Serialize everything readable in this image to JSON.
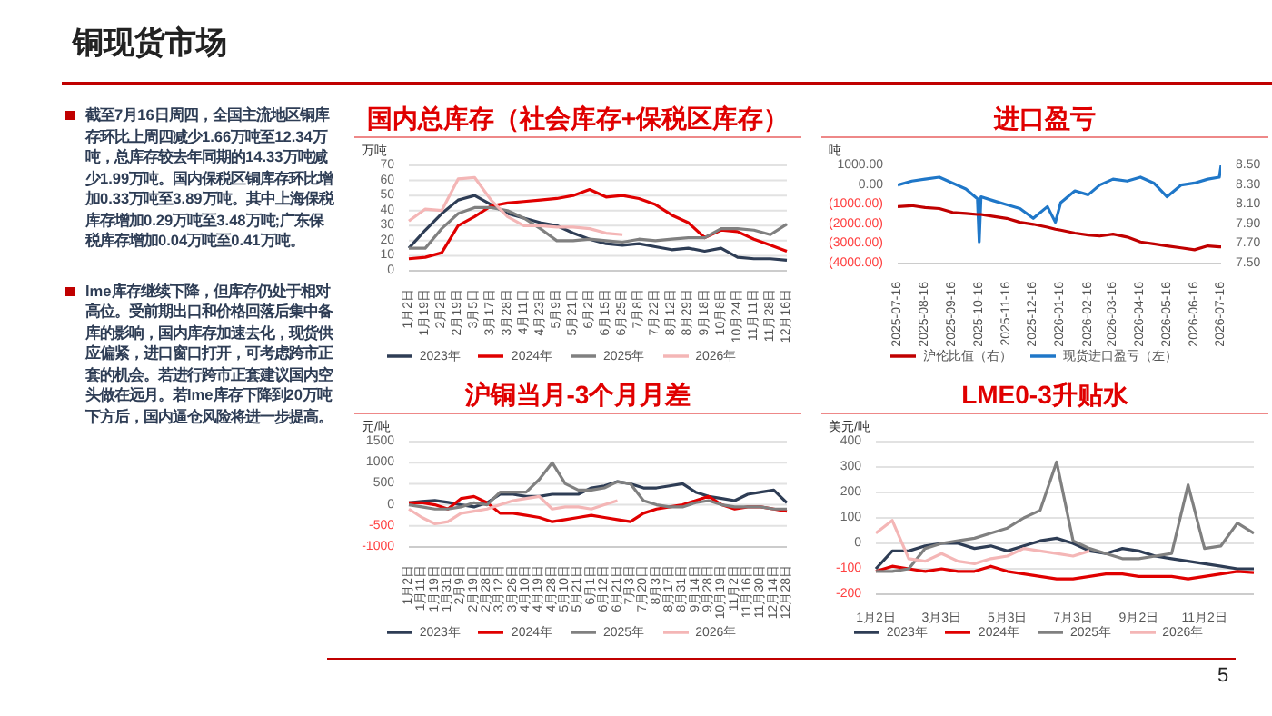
{
  "chart_data": [
    {
      "type": "other",
      "title": "铜现货市场",
      "annotations": [
        "截至7月16日周四，全国主流地区铜库存环比上周四减少1.66万吨至12.34万吨，总库存较去年同期的14.33万吨减少1.99万吨。国内保税区铜库存环比增加0.33万吨至3.89万吨。其中上海保税库存增加0.29万吨至3.48万吨;广东保税库存增加0.04万吨至0.41万吨。",
        "lme库存继续下降，但库存仍处于相对高位。受前期出口和价格回落后集中备库的影响，国内库存加速去化，现货供应偏紧，进口窗口打开，可考虑跨市正套的机会。若进行跨市正套建议国内空头做在远月。若lme库存下降到20万吨下方后，国内逼仓风险将进一步提高。",
        "5"
      ]
    },
    {
      "type": "line",
      "title": "国内总库存（社会库存+保税区库存）",
      "ylabel": "万吨",
      "categories": [
        "1月2日",
        "1月19日",
        "2月2日",
        "2月19日",
        "3月5日",
        "3月17日",
        "3月28日",
        "4月11日",
        "4月23日",
        "5月9日",
        "5月21日",
        "6月2日",
        "6月15日",
        "6月25日",
        "7月8日",
        "7月22日",
        "8月12日",
        "8月29日",
        "9月18日",
        "10月8日",
        "10月24日",
        "11月11日",
        "11月28日",
        "12月16日"
      ],
      "ylim": [
        0,
        70
      ],
      "yticks": [
        0,
        10,
        20,
        30,
        40,
        50,
        60,
        70
      ],
      "grid": "y",
      "legend": "bottom",
      "marker": "none",
      "series": [
        {
          "name": "2023年",
          "color": "#2e3d55",
          "values": [
            15,
            27,
            38,
            47,
            50,
            44,
            38,
            35,
            32,
            30,
            25,
            21,
            18,
            17,
            18,
            16,
            14,
            15,
            13,
            15,
            9,
            8,
            8,
            7
          ]
        },
        {
          "name": "2024年",
          "color": "#e00000",
          "values": [
            8,
            9,
            12,
            30,
            36,
            43,
            45,
            46,
            47,
            48,
            50,
            54,
            49,
            50,
            48,
            44,
            37,
            32,
            22,
            27,
            26,
            21,
            17,
            13
          ]
        },
        {
          "name": "2025年",
          "color": "#808080",
          "values": [
            15,
            15,
            28,
            38,
            42,
            42,
            40,
            35,
            28,
            20,
            20,
            21,
            20,
            19,
            21,
            20,
            21,
            22,
            22,
            28,
            28,
            27,
            24,
            31
          ]
        },
        {
          "name": "2026年",
          "color": "#f4b6b6",
          "values": [
            33,
            41,
            40,
            61,
            62,
            47,
            36,
            30,
            30,
            29,
            29,
            28,
            25,
            24,
            null,
            null,
            null,
            null,
            null,
            null,
            null,
            null,
            null,
            null
          ]
        }
      ]
    },
    {
      "type": "line",
      "title": "进口盈亏",
      "ylabel": "吨",
      "x": [
        "2025-07-16",
        "2025-08-01",
        "2025-08-16",
        "2025-09-01",
        "2025-09-16",
        "2025-10-01",
        "2025-10-14",
        "2025-10-16",
        "2025-10-18",
        "2025-11-01",
        "2025-11-16",
        "2025-12-01",
        "2025-12-16",
        "2026-01-01",
        "2026-01-10",
        "2026-01-16",
        "2026-02-01",
        "2026-02-16",
        "2026-03-01",
        "2026-03-16",
        "2026-04-01",
        "2026-04-16",
        "2026-05-01",
        "2026-05-16",
        "2026-06-01",
        "2026-06-16",
        "2026-07-01",
        "2026-07-14",
        "2026-07-16"
      ],
      "xlim": [
        "2025-07-16",
        "2026-07-16"
      ],
      "xticks": [
        "2025-07-16",
        "2025-08-16",
        "2025-09-16",
        "2025-10-16",
        "2025-11-16",
        "2025-12-16",
        "2026-01-16",
        "2026-02-16",
        "2026-03-16",
        "2026-04-16",
        "2026-05-16",
        "2026-06-16",
        "2026-07-16"
      ],
      "ylim": [
        -4000,
        1000
      ],
      "yticks": [
        {
          "value": 1000,
          "label": "1000.00"
        },
        {
          "value": 0,
          "label": "0.00"
        },
        {
          "value": -1000,
          "label": "(1000.00)"
        },
        {
          "value": -2000,
          "label": "(2000.00)"
        },
        {
          "value": -3000,
          "label": "(3000.00)"
        },
        {
          "value": -4000,
          "label": "(4000.00)"
        }
      ],
      "y2lim": [
        7.5,
        8.5
      ],
      "y2ticks": [
        {
          "value": 7.5,
          "label": "7.50"
        },
        {
          "value": 7.7,
          "label": "7.70"
        },
        {
          "value": 7.9,
          "label": "7.90"
        },
        {
          "value": 8.1,
          "label": "8.10"
        },
        {
          "value": 8.3,
          "label": "8.30"
        },
        {
          "value": 8.5,
          "label": "8.50"
        }
      ],
      "legend": "bottom",
      "marker": "none",
      "series": [
        {
          "name": "现货进口盈亏（左）",
          "color": "#1f77c8",
          "values": [
            0,
            200,
            300,
            400,
            100,
            -200,
            -700,
            -2900,
            -600,
            -800,
            -1000,
            -1200,
            -1700,
            -1100,
            -1900,
            -900,
            -300,
            -500,
            0,
            300,
            200,
            400,
            100,
            -600,
            0,
            100,
            300,
            400,
            1000
          ]
        },
        {
          "name": "沪伦比值（右）",
          "color": "#c00000",
          "axis": "y2",
          "values": [
            8.08,
            8.09,
            8.07,
            8.06,
            8.02,
            8.01,
            8.0,
            8.0,
            8.0,
            7.98,
            7.96,
            7.92,
            7.9,
            7.87,
            7.85,
            7.84,
            7.81,
            7.79,
            7.78,
            7.8,
            7.77,
            7.72,
            7.7,
            7.68,
            7.66,
            7.64,
            7.68,
            7.67,
            7.67
          ]
        }
      ]
    },
    {
      "type": "line",
      "title": "沪铜当月-3个月月差",
      "ylabel": "元/吨",
      "categories": [
        "1月2日",
        "1月11日",
        "1月19日",
        "1月31日",
        "2月9日",
        "2月19日",
        "2月28日",
        "3月12日",
        "3月26日",
        "4月10日",
        "4月19日",
        "4月28日",
        "5月10日",
        "5月21日",
        "6月1日",
        "6月12日",
        "6月21日",
        "7月3日",
        "7月20日",
        "8月3日",
        "8月17日",
        "8月31日",
        "9月14日",
        "9月28日",
        "10月19日",
        "11月2日",
        "11月16日",
        "11月30日",
        "12月14日",
        "12月28日"
      ],
      "ylim": [
        -1000,
        1500
      ],
      "yticks": [
        -1000,
        -500,
        0,
        500,
        1000,
        1500
      ],
      "grid": "y",
      "legend": "bottom",
      "marker": "none",
      "series": [
        {
          "name": "2023年",
          "color": "#2e3d55",
          "values": [
            50,
            80,
            100,
            60,
            0,
            -50,
            50,
            250,
            250,
            200,
            200,
            250,
            250,
            250,
            400,
            450,
            550,
            500,
            400,
            400,
            450,
            500,
            300,
            200,
            150,
            100,
            250,
            300,
            350,
            50
          ]
        },
        {
          "name": "2024年",
          "color": "#e00000",
          "values": [
            50,
            50,
            0,
            -100,
            150,
            200,
            50,
            -200,
            -200,
            -250,
            -300,
            -400,
            -350,
            -300,
            -250,
            -300,
            -350,
            -400,
            -200,
            -100,
            -50,
            0,
            100,
            200,
            0,
            -100,
            -50,
            -50,
            -100,
            -150
          ]
        },
        {
          "name": "2025年",
          "color": "#808080",
          "values": [
            0,
            -50,
            -100,
            -100,
            -50,
            50,
            0,
            300,
            300,
            300,
            600,
            1000,
            500,
            350,
            350,
            400,
            550,
            500,
            100,
            0,
            -50,
            -50,
            50,
            100,
            0,
            -50,
            -50,
            -50,
            -100,
            -100
          ]
        },
        {
          "name": "2026年",
          "color": "#f4b6b6",
          "values": [
            -100,
            -300,
            -450,
            -400,
            -200,
            -150,
            -100,
            0,
            100,
            150,
            200,
            -100,
            -50,
            -50,
            -100,
            0,
            100,
            null,
            null,
            null,
            null,
            null,
            null,
            null,
            null,
            null,
            null,
            null,
            null,
            null
          ]
        }
      ]
    },
    {
      "type": "line",
      "title": "LME0-3升贴水",
      "ylabel": "美元/吨",
      "categories": [
        "1月2日",
        null,
        null,
        null,
        "3月3日",
        null,
        null,
        null,
        "5月3日",
        null,
        null,
        null,
        "7月3日",
        null,
        null,
        null,
        "9月2日",
        null,
        null,
        null,
        "11月2日",
        null,
        null,
        null
      ],
      "ylim": [
        -200,
        400
      ],
      "yticks": [
        -200,
        -100,
        0,
        100,
        200,
        300,
        400
      ],
      "grid": "y",
      "legend": "bottom",
      "marker": "none",
      "series": [
        {
          "name": "2023年",
          "color": "#2e3d55",
          "values": [
            -100,
            -30,
            -30,
            -10,
            0,
            0,
            -20,
            -10,
            -30,
            -10,
            10,
            20,
            0,
            -30,
            -40,
            -20,
            -30,
            -50,
            -60,
            -70,
            -80,
            -90,
            -100,
            -100
          ]
        },
        {
          "name": "2024年",
          "color": "#e00000",
          "values": [
            -110,
            -90,
            -100,
            -110,
            -100,
            -110,
            -110,
            -90,
            -110,
            -120,
            -130,
            -140,
            -140,
            -130,
            -120,
            -120,
            -130,
            -130,
            -130,
            -140,
            -130,
            -120,
            -110,
            -115
          ]
        },
        {
          "name": "2025年",
          "color": "#808080",
          "values": [
            -110,
            -110,
            -100,
            -20,
            0,
            10,
            20,
            40,
            60,
            100,
            130,
            320,
            10,
            -20,
            -40,
            -60,
            -60,
            -50,
            -40,
            230,
            -20,
            -10,
            80,
            40
          ]
        },
        {
          "name": "2026年",
          "color": "#f4b6b6",
          "values": [
            40,
            90,
            -60,
            -70,
            -40,
            -70,
            -80,
            -60,
            -50,
            -20,
            -30,
            -40,
            -50,
            -30,
            null,
            null,
            null,
            null,
            null,
            null,
            null,
            null,
            null,
            null
          ]
        }
      ]
    }
  ]
}
